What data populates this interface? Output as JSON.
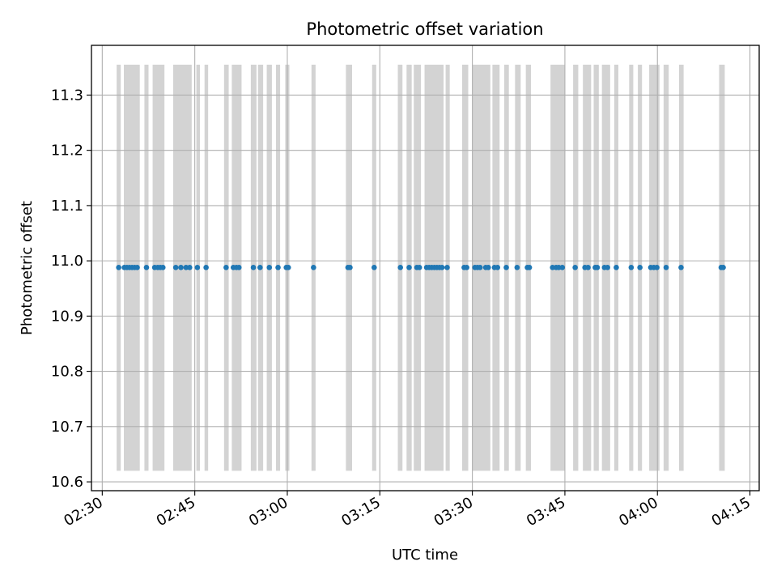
{
  "chart_data": {
    "type": "scatter",
    "title": "Photometric offset variation",
    "xlabel": "UTC time",
    "ylabel": "Photometric offset",
    "xlim": [
      "02:28:15",
      "04:16:30"
    ],
    "ylim": [
      10.584,
      11.39
    ],
    "x_ticks": [
      "02:30",
      "02:45",
      "03:00",
      "03:15",
      "03:30",
      "03:45",
      "04:00",
      "04:15"
    ],
    "y_ticks": [
      "10.6",
      "10.7",
      "10.8",
      "10.9",
      "11.0",
      "11.1",
      "11.2",
      "11.3"
    ],
    "grid": true,
    "shaded_band_range": [
      10.62,
      11.355
    ],
    "shaded_bands": [
      [
        "02:32:20",
        "02:33:00"
      ],
      [
        "02:33:30",
        "02:36:05"
      ],
      [
        "02:36:50",
        "02:37:30"
      ],
      [
        "02:38:10",
        "02:40:05"
      ],
      [
        "02:41:30",
        "02:44:30"
      ],
      [
        "02:45:15",
        "02:45:50"
      ],
      [
        "02:46:35",
        "02:47:10"
      ],
      [
        "02:49:45",
        "02:50:30"
      ],
      [
        "02:51:00",
        "02:52:35"
      ],
      [
        "02:54:05",
        "02:55:00"
      ],
      [
        "02:55:15",
        "02:56:05"
      ],
      [
        "02:56:40",
        "02:57:30"
      ],
      [
        "02:58:10",
        "02:58:50"
      ],
      [
        "02:59:40",
        "03:00:20"
      ],
      [
        "03:03:55",
        "03:04:35"
      ],
      [
        "03:09:30",
        "03:10:30"
      ],
      [
        "03:13:45",
        "03:14:25"
      ],
      [
        "03:17:55",
        "03:18:40"
      ],
      [
        "03:19:20",
        "03:20:10"
      ],
      [
        "03:20:30",
        "03:21:40"
      ],
      [
        "03:22:15",
        "03:25:20"
      ],
      [
        "03:25:40",
        "03:26:20"
      ],
      [
        "03:28:20",
        "03:29:20"
      ],
      [
        "03:30:00",
        "03:32:55"
      ],
      [
        "03:33:15",
        "03:34:25"
      ],
      [
        "03:35:10",
        "03:35:55"
      ],
      [
        "03:36:55",
        "03:37:50"
      ],
      [
        "03:38:40",
        "03:39:30"
      ],
      [
        "03:42:40",
        "03:45:00"
      ],
      [
        "03:46:20",
        "03:47:10"
      ],
      [
        "03:47:55",
        "03:49:15"
      ],
      [
        "03:49:40",
        "03:50:30"
      ],
      [
        "03:51:00",
        "03:52:20"
      ],
      [
        "03:53:00",
        "03:53:40"
      ],
      [
        "03:55:25",
        "03:56:05"
      ],
      [
        "03:56:50",
        "03:57:30"
      ],
      [
        "03:58:40",
        "04:00:20"
      ],
      [
        "04:01:00",
        "04:01:50"
      ],
      [
        "04:03:30",
        "04:04:15"
      ],
      [
        "04:10:00",
        "04:10:55"
      ]
    ],
    "series": [
      {
        "color": "#1f77b4",
        "x": [
          "02:32:40",
          "02:33:35",
          "02:34:00",
          "02:34:25",
          "02:34:50",
          "02:35:15",
          "02:35:40",
          "02:37:10",
          "02:38:30",
          "02:39:00",
          "02:39:25",
          "02:39:50",
          "02:41:55",
          "02:42:45",
          "02:43:35",
          "02:44:10",
          "02:45:25",
          "02:46:50",
          "02:50:05",
          "02:51:15",
          "02:51:45",
          "02:52:10",
          "02:54:30",
          "02:55:35",
          "02:57:05",
          "02:58:30",
          "02:59:50",
          "03:00:10",
          "03:04:15",
          "03:09:50",
          "03:10:10",
          "03:14:05",
          "03:18:20",
          "03:19:45",
          "03:21:00",
          "03:21:25",
          "03:22:35",
          "03:23:00",
          "03:23:25",
          "03:23:50",
          "03:24:15",
          "03:24:40",
          "03:25:05",
          "03:25:55",
          "03:28:40",
          "03:29:05",
          "03:30:25",
          "03:30:50",
          "03:31:15",
          "03:32:10",
          "03:32:35",
          "03:33:35",
          "03:34:05",
          "03:35:30",
          "03:37:15",
          "03:38:55",
          "03:39:15",
          "03:43:00",
          "03:43:35",
          "03:44:00",
          "03:44:35",
          "03:46:40",
          "03:48:15",
          "03:48:45",
          "03:49:55",
          "03:50:15",
          "03:51:25",
          "03:51:55",
          "03:53:20",
          "03:55:45",
          "03:57:10",
          "03:58:55",
          "03:59:25",
          "03:59:55",
          "04:01:25",
          "04:03:50",
          "04:10:20",
          "04:10:40"
        ],
        "y": [
          10.988,
          10.988,
          10.988,
          10.988,
          10.988,
          10.988,
          10.988,
          10.988,
          10.988,
          10.988,
          10.988,
          10.988,
          10.988,
          10.988,
          10.988,
          10.988,
          10.988,
          10.988,
          10.988,
          10.988,
          10.988,
          10.988,
          10.988,
          10.988,
          10.988,
          10.988,
          10.988,
          10.988,
          10.988,
          10.988,
          10.988,
          10.988,
          10.988,
          10.988,
          10.988,
          10.988,
          10.988,
          10.988,
          10.988,
          10.988,
          10.988,
          10.988,
          10.988,
          10.988,
          10.988,
          10.988,
          10.988,
          10.988,
          10.988,
          10.988,
          10.988,
          10.988,
          10.988,
          10.988,
          10.988,
          10.988,
          10.988,
          10.988,
          10.988,
          10.988,
          10.988,
          10.988,
          10.988,
          10.988,
          10.988,
          10.988,
          10.988,
          10.988,
          10.988,
          10.988,
          10.988,
          10.988,
          10.988,
          10.988,
          10.988,
          10.988,
          10.988,
          10.988
        ]
      }
    ],
    "band_color": "#d3d3d3",
    "grid_color": "#b0b0b0"
  }
}
